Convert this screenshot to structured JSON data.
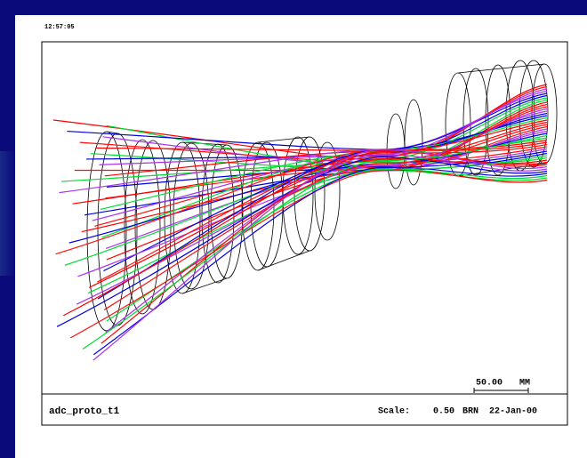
{
  "header": {
    "time": "12:57:05"
  },
  "scale_bar": {
    "length": "50.00",
    "unit": "MM"
  },
  "footer": {
    "name": "adc_proto_t1",
    "scale_label": "Scale:",
    "scale": "0.50",
    "initials": "BRN",
    "date": "22-Jan-00"
  }
}
